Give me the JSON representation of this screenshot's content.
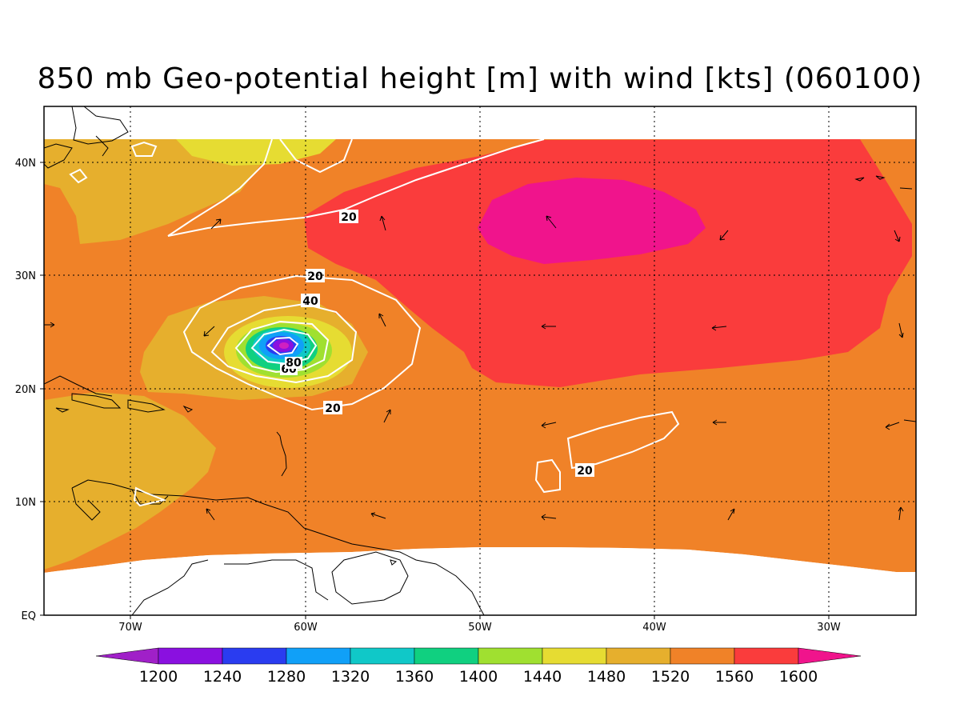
{
  "title": "850 mb Geo-potential height [m] with wind [kts] (060100)",
  "lat_labels": [
    "40N",
    "30N",
    "20N",
    "10N",
    "EQ"
  ],
  "lon_labels": [
    "70W",
    "60W",
    "50W",
    "40W",
    "30W"
  ],
  "colorbar_labels": [
    "1200",
    "1240",
    "1280",
    "1320",
    "1360",
    "1400",
    "1440",
    "1480",
    "1520",
    "1560",
    "1600"
  ],
  "colorbar_colors": [
    "#a020c8",
    "#8a10e0",
    "#2a3cf0",
    "#10a0f8",
    "#10c8c8",
    "#10d080",
    "#a0e030",
    "#e6dc32",
    "#e6af2d",
    "#f08228",
    "#fa3c3c",
    "#f0148c"
  ],
  "wind_contour_labels": [
    "20",
    "20",
    "40",
    "60",
    "80",
    "20",
    "20"
  ],
  "colors": {
    "orange": "#f08228",
    "light_orange": "#e6af2d",
    "yellow": "#e6dc32",
    "red": "#fa3c3c",
    "magenta": "#f0148c"
  }
}
